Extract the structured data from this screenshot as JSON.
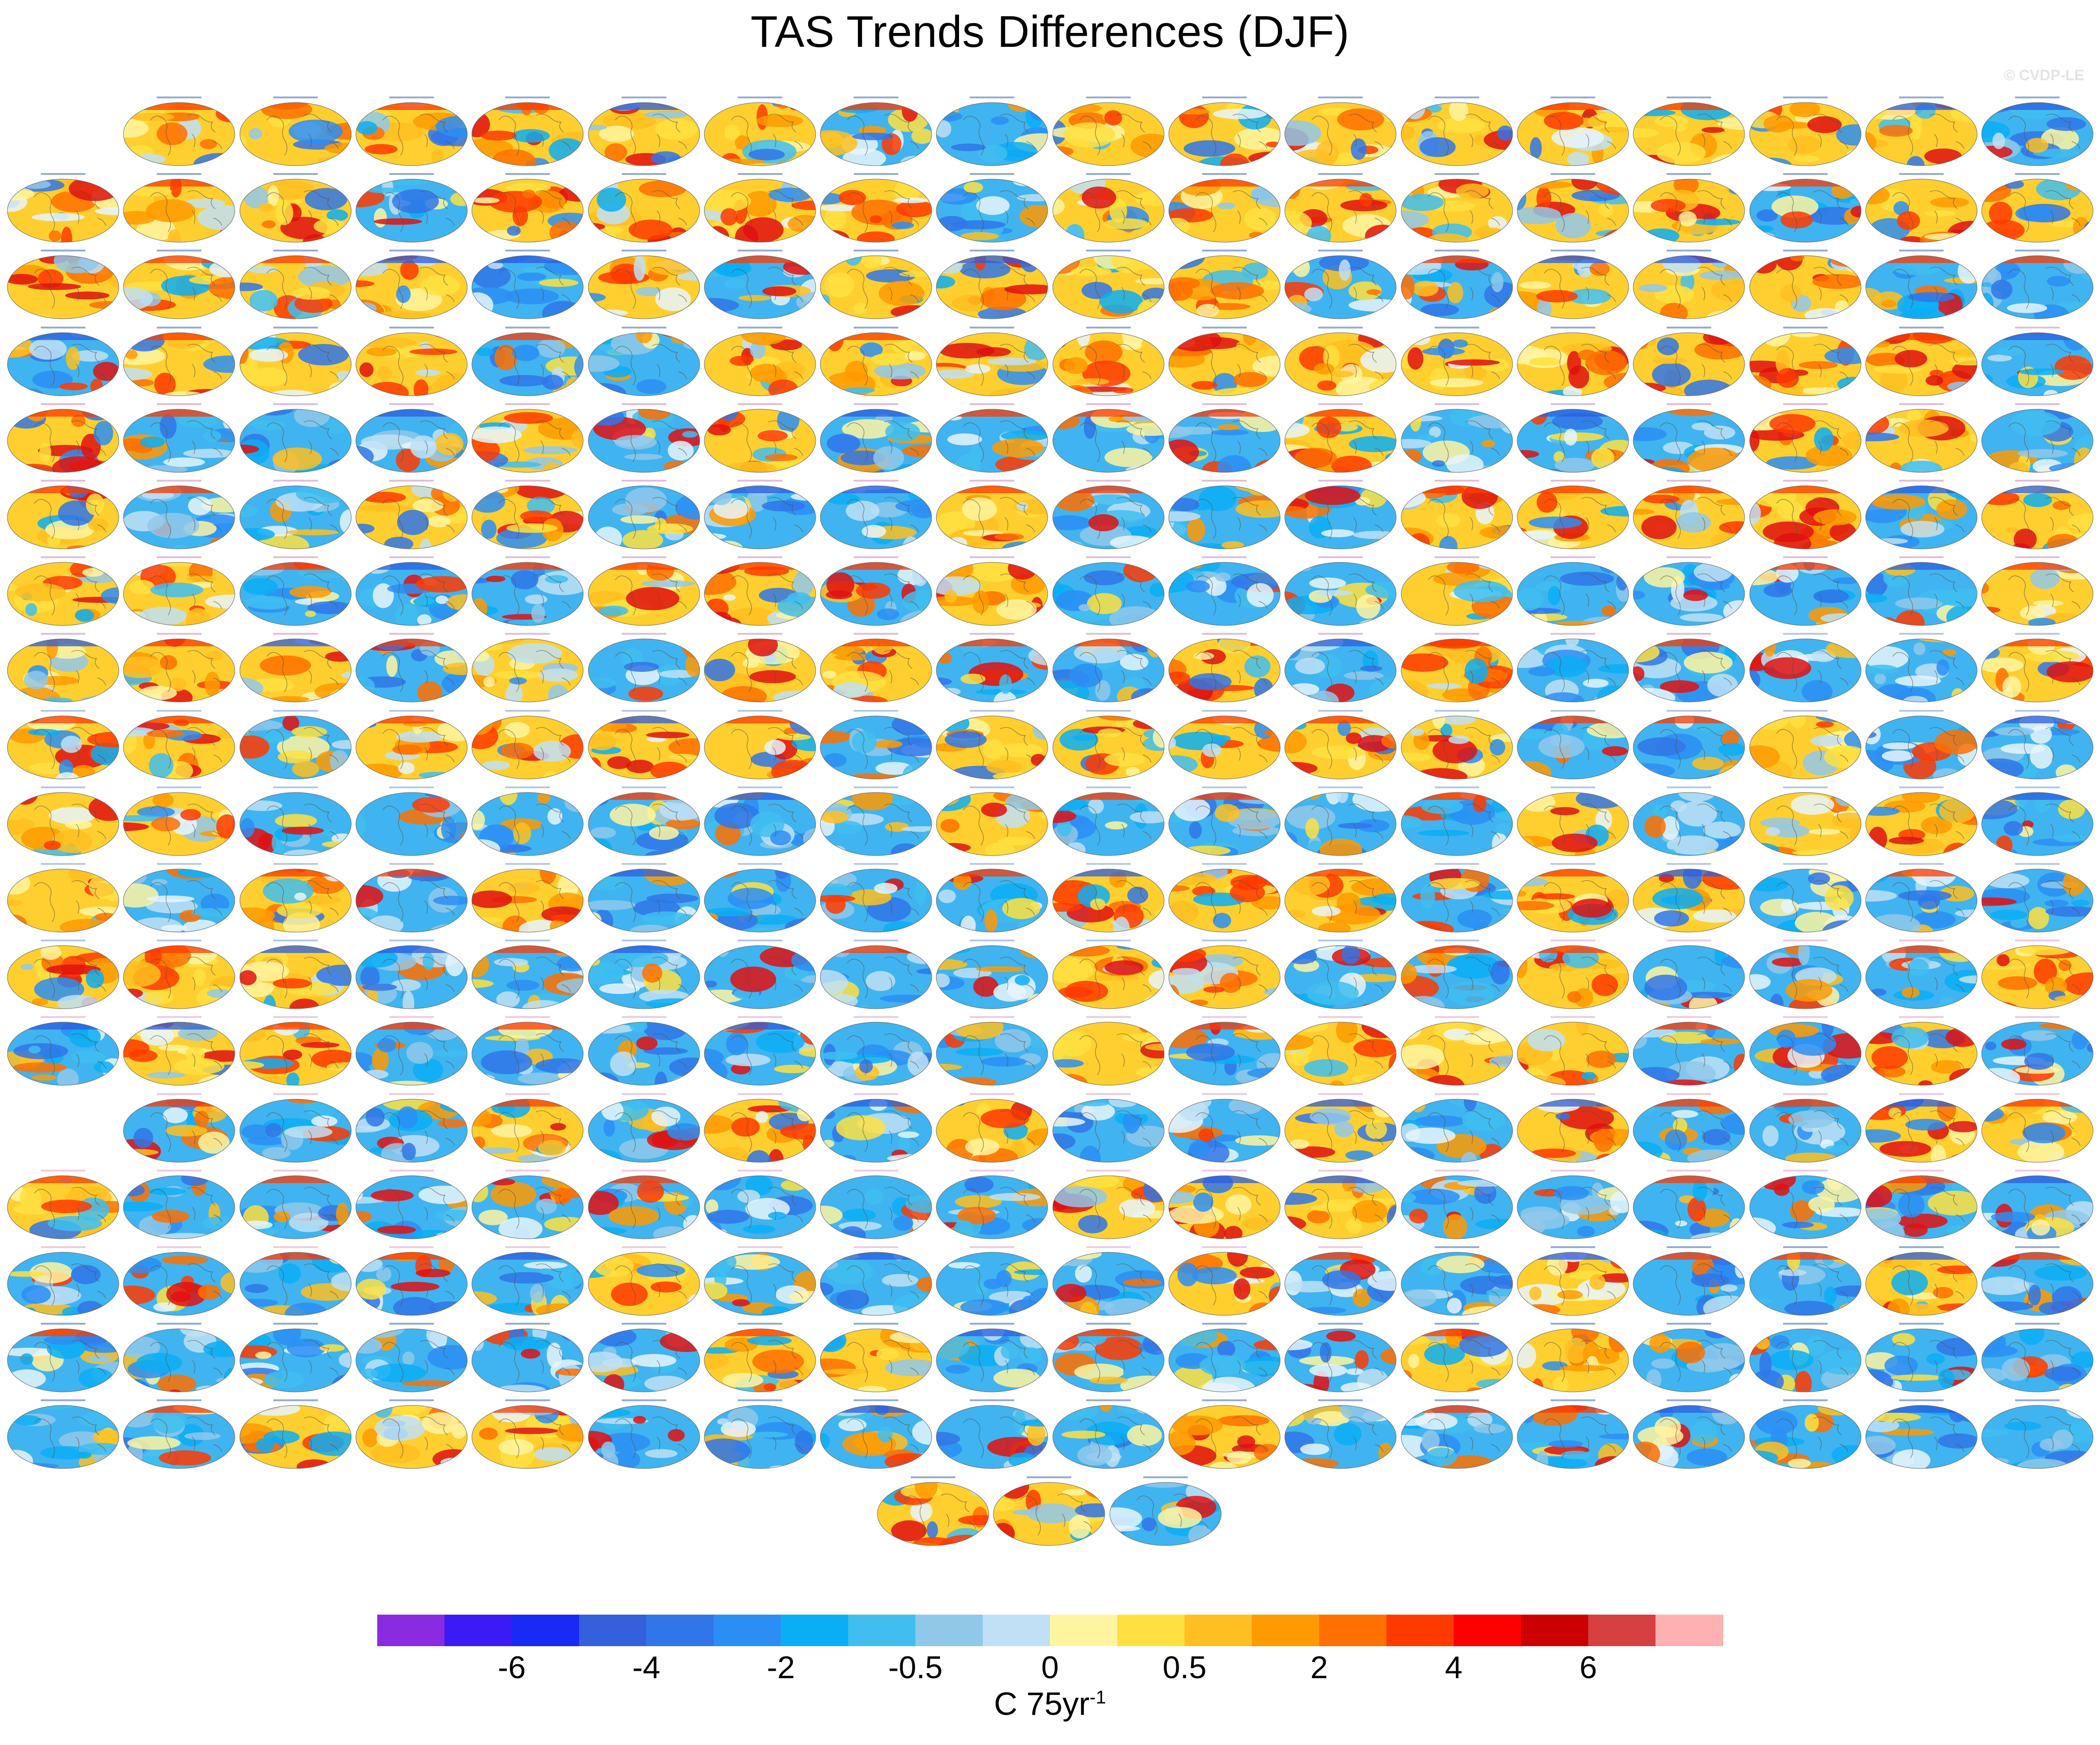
{
  "title": "TAS Trends Differences (DJF)",
  "watermark": "© CVDP-LE",
  "colorbar": {
    "colors": [
      "#8a2be2",
      "#3b1af5",
      "#1a2af5",
      "#3560dc",
      "#3076e8",
      "#2b8ef5",
      "#0aaef5",
      "#40bef0",
      "#90c8ea",
      "#bfe0f5",
      "#fff5a0",
      "#ffe040",
      "#ffbf20",
      "#ff9a00",
      "#ff7000",
      "#ff3a00",
      "#ff0000",
      "#cc0000",
      "#d64040",
      "#ffb0b0"
    ],
    "tick_labels": [
      "-6",
      "-4",
      "-2",
      "-0.5",
      "0",
      "0.5",
      "2",
      "4",
      "6"
    ],
    "units_prefix": "C 75yr",
    "units_exponent": "-1"
  },
  "panels": {
    "row_counts": [
      17,
      18,
      18,
      18,
      18,
      18,
      18,
      18,
      18,
      18,
      18,
      18,
      18,
      17,
      18,
      18,
      18,
      18,
      3
    ],
    "first_offset": [
      1,
      0,
      0,
      0,
      0,
      0,
      0,
      0,
      0,
      0,
      0,
      0,
      0,
      1,
      0,
      0,
      0,
      0,
      0
    ],
    "label_colors": [
      "#3a6ab0",
      "#c48ab8",
      "#7a9cd0",
      "#e0a0c8"
    ]
  }
}
